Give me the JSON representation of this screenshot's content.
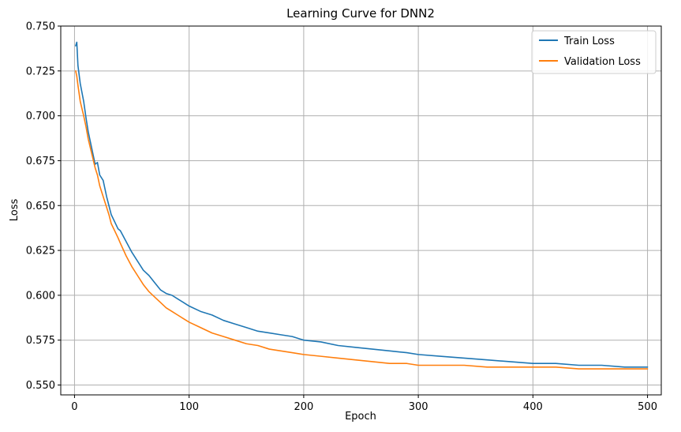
{
  "chart_data": {
    "type": "line",
    "title": "Learning Curve for DNN2",
    "xlabel": "Epoch",
    "ylabel": "Loss",
    "xlim": [
      -12,
      512
    ],
    "ylim": [
      0.5445,
      0.75
    ],
    "xticks": [
      0,
      100,
      200,
      300,
      400,
      500
    ],
    "xtick_labels": [
      "0",
      "100",
      "200",
      "300",
      "400",
      "500"
    ],
    "yticks": [
      0.55,
      0.575,
      0.6,
      0.625,
      0.65,
      0.675,
      0.7,
      0.725,
      0.75
    ],
    "ytick_labels": [
      "0.550",
      "0.575",
      "0.600",
      "0.625",
      "0.650",
      "0.675",
      "0.700",
      "0.725",
      "0.750"
    ],
    "grid": true,
    "legend_position": "top-right",
    "series": [
      {
        "name": "Train Loss",
        "color": "#1f77b4",
        "x": [
          1,
          2,
          3,
          5,
          8,
          10,
          12,
          15,
          18,
          20,
          22,
          25,
          28,
          30,
          32,
          35,
          38,
          40,
          45,
          50,
          55,
          60,
          65,
          70,
          75,
          80,
          85,
          90,
          95,
          100,
          110,
          120,
          130,
          140,
          150,
          160,
          170,
          180,
          190,
          200,
          215,
          230,
          245,
          260,
          275,
          290,
          300,
          320,
          340,
          360,
          380,
          400,
          420,
          440,
          460,
          480,
          500
        ],
        "y": [
          0.739,
          0.741,
          0.728,
          0.718,
          0.708,
          0.699,
          0.691,
          0.682,
          0.673,
          0.674,
          0.667,
          0.664,
          0.655,
          0.65,
          0.645,
          0.641,
          0.637,
          0.636,
          0.63,
          0.624,
          0.619,
          0.614,
          0.611,
          0.607,
          0.603,
          0.601,
          0.6,
          0.598,
          0.596,
          0.594,
          0.591,
          0.589,
          0.586,
          0.584,
          0.582,
          0.58,
          0.579,
          0.578,
          0.577,
          0.575,
          0.574,
          0.572,
          0.571,
          0.57,
          0.569,
          0.568,
          0.567,
          0.566,
          0.565,
          0.564,
          0.563,
          0.562,
          0.562,
          0.561,
          0.561,
          0.56,
          0.56
        ]
      },
      {
        "name": "Validation Loss",
        "color": "#ff7f0e",
        "x": [
          1,
          2,
          3,
          5,
          8,
          10,
          12,
          15,
          18,
          20,
          22,
          25,
          28,
          30,
          32,
          35,
          38,
          40,
          45,
          50,
          55,
          60,
          65,
          70,
          75,
          80,
          85,
          90,
          95,
          100,
          110,
          120,
          130,
          140,
          150,
          160,
          170,
          180,
          190,
          200,
          215,
          230,
          245,
          260,
          275,
          290,
          300,
          320,
          340,
          360,
          380,
          400,
          420,
          440,
          460,
          480,
          500
        ],
        "y": [
          0.725,
          0.722,
          0.717,
          0.708,
          0.7,
          0.694,
          0.687,
          0.679,
          0.671,
          0.667,
          0.661,
          0.655,
          0.649,
          0.645,
          0.64,
          0.636,
          0.632,
          0.629,
          0.622,
          0.616,
          0.611,
          0.606,
          0.602,
          0.599,
          0.596,
          0.593,
          0.591,
          0.589,
          0.587,
          0.585,
          0.582,
          0.579,
          0.577,
          0.575,
          0.573,
          0.572,
          0.57,
          0.569,
          0.568,
          0.567,
          0.566,
          0.565,
          0.564,
          0.563,
          0.562,
          0.562,
          0.561,
          0.561,
          0.561,
          0.56,
          0.56,
          0.56,
          0.56,
          0.559,
          0.559,
          0.559,
          0.559
        ]
      }
    ]
  }
}
